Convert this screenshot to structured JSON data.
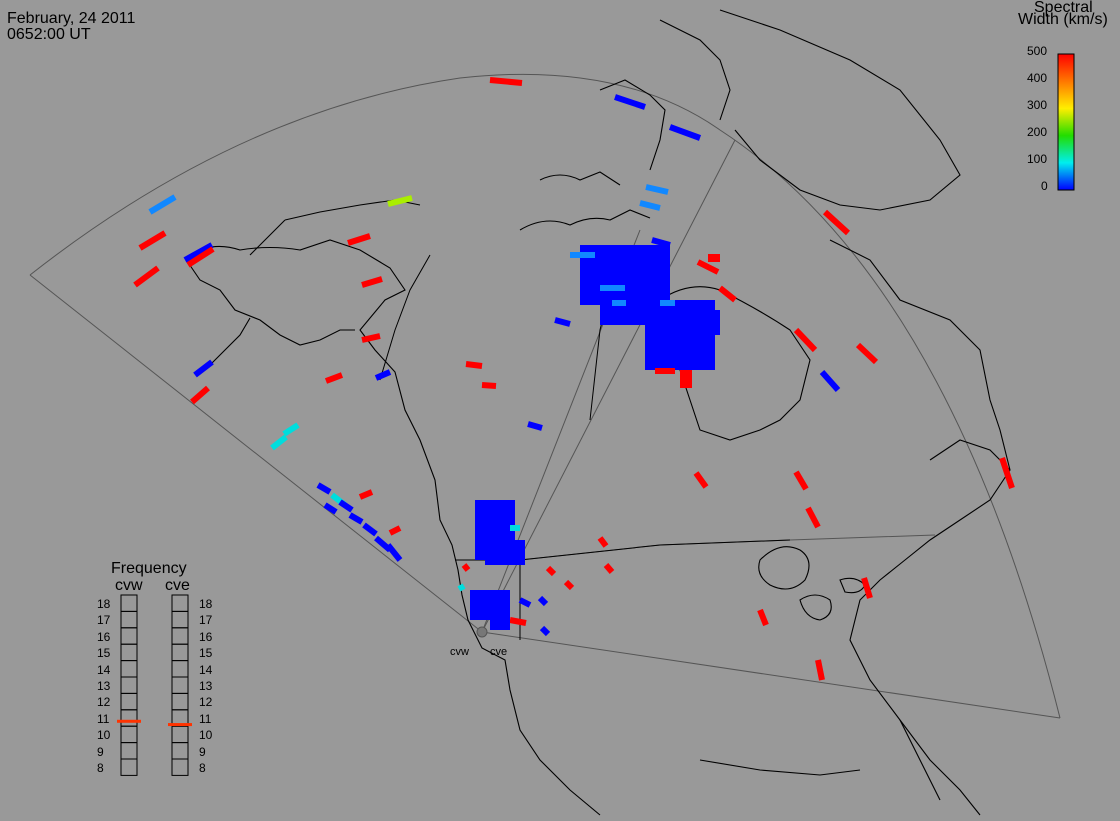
{
  "header": {
    "date": "February, 24 2011",
    "time": "0652:00 UT"
  },
  "colorbar": {
    "title_line1": "Spectral",
    "title_line2": "Width (km/s)",
    "ticks": [
      "500",
      "400",
      "300",
      "200",
      "100",
      "0"
    ],
    "colors": [
      "#ff0000",
      "#ff7700",
      "#ffee00",
      "#22dd00",
      "#00eeee",
      "#0000ff"
    ]
  },
  "frequency": {
    "title": "Frequency",
    "radars": [
      {
        "name": "cvw",
        "value": 10.8
      },
      {
        "name": "cve",
        "value": 10.6
      }
    ],
    "scale": [
      "18",
      "17",
      "16",
      "15",
      "14",
      "13",
      "12",
      "11",
      "10",
      "9",
      "8"
    ],
    "marker_color": "#ff3300"
  },
  "map": {
    "land_outline_color": "#000000",
    "fov_outline_color": "#444444",
    "radar_sites": [
      {
        "label": "cvw"
      },
      {
        "label": "cve"
      }
    ]
  }
}
